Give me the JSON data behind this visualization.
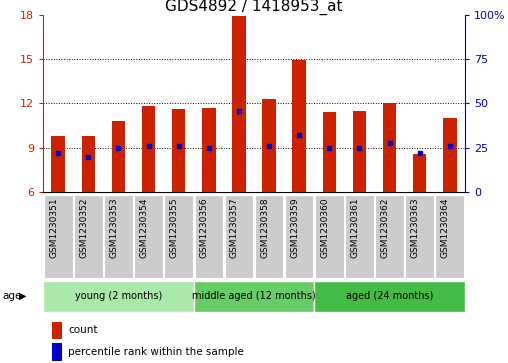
{
  "title": "GDS4892 / 1418953_at",
  "samples": [
    "GSM1230351",
    "GSM1230352",
    "GSM1230353",
    "GSM1230354",
    "GSM1230355",
    "GSM1230356",
    "GSM1230357",
    "GSM1230358",
    "GSM1230359",
    "GSM1230360",
    "GSM1230361",
    "GSM1230362",
    "GSM1230363",
    "GSM1230364"
  ],
  "count_values": [
    9.8,
    9.8,
    10.8,
    11.8,
    11.6,
    11.7,
    17.9,
    12.3,
    14.9,
    11.4,
    11.5,
    12.0,
    8.6,
    11.0
  ],
  "percentile_values": [
    22,
    20,
    25,
    26,
    26,
    25,
    46,
    26,
    32,
    25,
    25,
    28,
    22,
    26
  ],
  "bar_bottom": 6.0,
  "ylim_left": [
    6,
    18
  ],
  "ylim_right": [
    0,
    100
  ],
  "yticks_left": [
    6,
    9,
    12,
    15,
    18
  ],
  "yticks_right": [
    0,
    25,
    50,
    75,
    100
  ],
  "groups": [
    {
      "label": "young (2 months)",
      "start": 0,
      "end": 5
    },
    {
      "label": "middle aged (12 months)",
      "start": 5,
      "end": 9
    },
    {
      "label": "aged (24 months)",
      "start": 9,
      "end": 14
    }
  ],
  "group_colors": [
    "#aae8aa",
    "#66cc66",
    "#44bb44"
  ],
  "bar_color": "#CC2200",
  "percentile_color": "#0000CC",
  "left_axis_color": "#CC2200",
  "right_axis_color": "#0000BB",
  "title_fontsize": 11,
  "tick_fontsize": 8,
  "sample_box_color": "#cccccc",
  "sample_box_edge": "#999999"
}
